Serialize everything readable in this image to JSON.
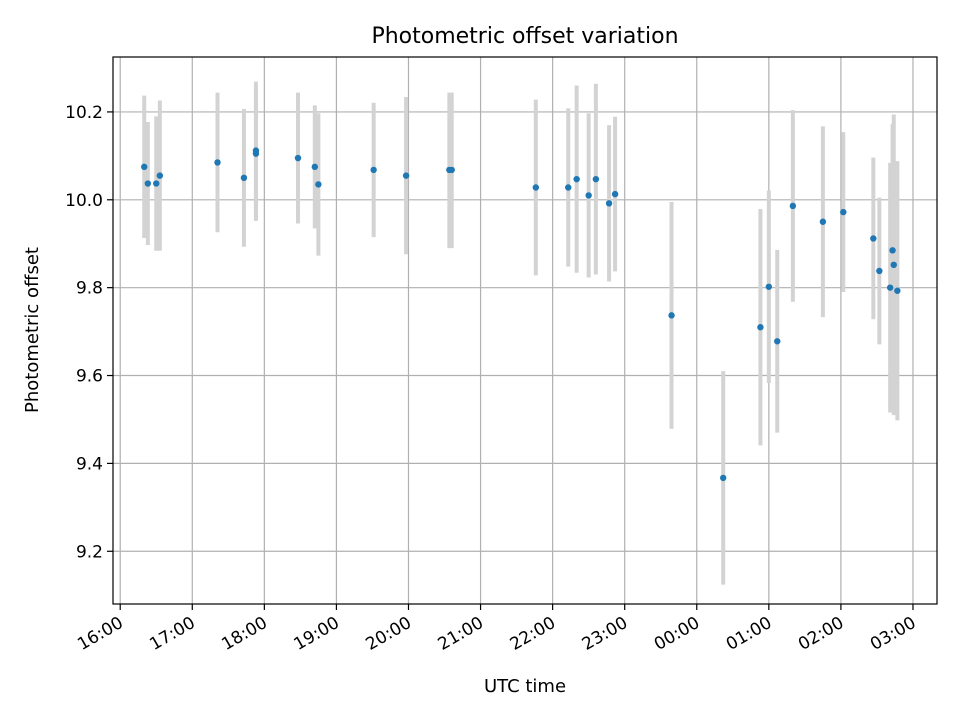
{
  "chart_data": {
    "type": "scatter",
    "title": "Photometric offset variation",
    "xlabel": "UTC time",
    "ylabel": "Photometric offset",
    "x_ticks": [
      "16:00",
      "17:00",
      "18:00",
      "19:00",
      "20:00",
      "21:00",
      "22:00",
      "23:00",
      "00:00",
      "01:00",
      "02:00",
      "03:00"
    ],
    "y_ticks": [
      "9.2",
      "9.4",
      "9.6",
      "9.8",
      "10.0",
      "10.2"
    ],
    "y_tick_values": [
      9.2,
      9.4,
      9.6,
      9.8,
      10.0,
      10.2
    ],
    "xlim": [
      "16:00",
      "03:20"
    ],
    "ylim": [
      9.08,
      10.325
    ],
    "grid": true,
    "colors": {
      "point": "#1f77b4",
      "errorbar": "#d3d3d3",
      "grid": "#b0b0b0",
      "axes": "#000000"
    },
    "points": [
      {
        "t": "16:20",
        "y": 10.075,
        "lo": 9.913,
        "hi": 10.237
      },
      {
        "t": "16:23",
        "y": 10.037,
        "lo": 9.897,
        "hi": 10.177
      },
      {
        "t": "16:30",
        "y": 10.037,
        "lo": 9.884,
        "hi": 10.19
      },
      {
        "t": "16:33",
        "y": 10.055,
        "lo": 9.884,
        "hi": 10.226
      },
      {
        "t": "17:21",
        "y": 10.085,
        "lo": 9.926,
        "hi": 10.244
      },
      {
        "t": "17:43",
        "y": 10.05,
        "lo": 9.893,
        "hi": 10.207
      },
      {
        "t": "17:53",
        "y": 10.105,
        "lo": 9.952,
        "hi": 10.258
      },
      {
        "t": "17:53",
        "y": 10.112,
        "lo": 9.955,
        "hi": 10.269
      },
      {
        "t": "18:28",
        "y": 10.095,
        "lo": 9.946,
        "hi": 10.244
      },
      {
        "t": "18:42",
        "y": 10.075,
        "lo": 9.935,
        "hi": 10.215
      },
      {
        "t": "18:45",
        "y": 10.035,
        "lo": 9.873,
        "hi": 10.197
      },
      {
        "t": "19:31",
        "y": 10.068,
        "lo": 9.915,
        "hi": 10.221
      },
      {
        "t": "19:58",
        "y": 10.055,
        "lo": 9.876,
        "hi": 10.234
      },
      {
        "t": "20:34",
        "y": 10.068,
        "lo": 9.89,
        "hi": 10.244
      },
      {
        "t": "20:36",
        "y": 10.068,
        "lo": 9.89,
        "hi": 10.244
      },
      {
        "t": "21:46",
        "y": 10.028,
        "lo": 9.828,
        "hi": 10.228
      },
      {
        "t": "22:13",
        "y": 10.028,
        "lo": 9.848,
        "hi": 10.208
      },
      {
        "t": "22:20",
        "y": 10.047,
        "lo": 9.834,
        "hi": 10.26
      },
      {
        "t": "22:30",
        "y": 10.01,
        "lo": 9.823,
        "hi": 10.197
      },
      {
        "t": "22:36",
        "y": 10.047,
        "lo": 9.83,
        "hi": 10.264
      },
      {
        "t": "22:47",
        "y": 9.992,
        "lo": 9.814,
        "hi": 10.17
      },
      {
        "t": "22:52",
        "y": 10.013,
        "lo": 9.837,
        "hi": 10.189
      },
      {
        "t": "23:39",
        "y": 9.737,
        "lo": 9.479,
        "hi": 9.995
      },
      {
        "t": "00:22",
        "y": 9.367,
        "lo": 9.124,
        "hi": 9.61
      },
      {
        "t": "00:53",
        "y": 9.71,
        "lo": 9.441,
        "hi": 9.979
      },
      {
        "t": "01:00",
        "y": 9.802,
        "lo": 9.583,
        "hi": 10.021
      },
      {
        "t": "01:07",
        "y": 9.678,
        "lo": 9.47,
        "hi": 9.886
      },
      {
        "t": "01:20",
        "y": 9.986,
        "lo": 9.768,
        "hi": 10.204
      },
      {
        "t": "01:45",
        "y": 9.95,
        "lo": 9.733,
        "hi": 10.167
      },
      {
        "t": "02:02",
        "y": 9.972,
        "lo": 9.79,
        "hi": 10.154
      },
      {
        "t": "02:27",
        "y": 9.912,
        "lo": 9.728,
        "hi": 10.096
      },
      {
        "t": "02:32",
        "y": 9.838,
        "lo": 9.671,
        "hi": 10.005
      },
      {
        "t": "02:41",
        "y": 9.8,
        "lo": 9.516,
        "hi": 10.084
      },
      {
        "t": "02:43",
        "y": 9.885,
        "lo": 9.598,
        "hi": 10.172
      },
      {
        "t": "02:44",
        "y": 9.852,
        "lo": 9.51,
        "hi": 10.194
      },
      {
        "t": "02:47",
        "y": 9.793,
        "lo": 9.498,
        "hi": 10.088
      }
    ]
  }
}
